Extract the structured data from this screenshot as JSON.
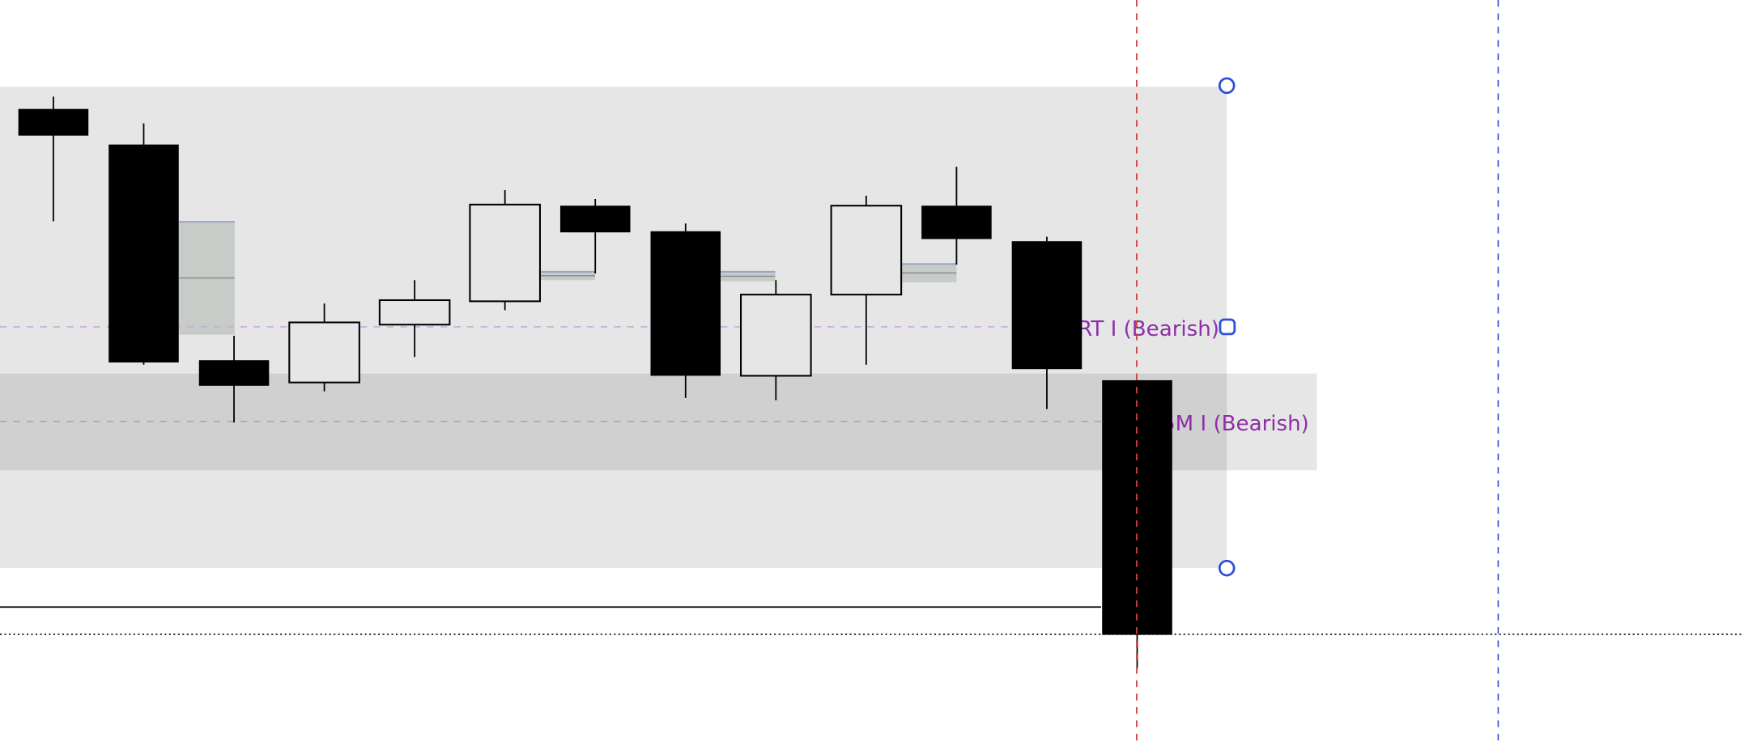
{
  "chart_data": {
    "type": "candlestick",
    "grid": false,
    "candles": [
      {
        "open": 573,
        "close": 549,
        "high": 584,
        "low": 472
      },
      {
        "open": 541,
        "close": 345,
        "high": 560,
        "low": 343
      },
      {
        "open": 347,
        "close": 324,
        "high": 369,
        "low": 291
      },
      {
        "open": 327,
        "close": 381,
        "high": 398,
        "low": 319
      },
      {
        "open": 379,
        "close": 401,
        "high": 419,
        "low": 350
      },
      {
        "open": 400,
        "close": 487,
        "high": 500,
        "low": 392
      },
      {
        "open": 486,
        "close": 462,
        "high": 492,
        "low": 425
      },
      {
        "open": 463,
        "close": 333,
        "high": 470,
        "low": 313
      },
      {
        "open": 333,
        "close": 406,
        "high": 419,
        "low": 311
      },
      {
        "open": 406,
        "close": 486,
        "high": 495,
        "low": 343
      },
      {
        "open": 486,
        "close": 456,
        "high": 521,
        "low": 433
      },
      {
        "open": 454,
        "close": 339,
        "high": 458,
        "low": 303
      },
      {
        "open": 329,
        "close": 100,
        "high": 329,
        "low": 70
      }
    ],
    "zones": [
      {
        "label": "4H IRT I (Bearish)",
        "level": 377,
        "color": "#8e2fa8"
      },
      {
        "label": "15M I (Bearish)",
        "level": 292,
        "color": "#8e2fa8"
      }
    ],
    "colors": {
      "bearish": "#000000",
      "bullish": "#e6e6e6",
      "zone_fill": "#e6e6e6",
      "band_fill": "#d0d0d0",
      "gap_fill": "#c8ccc8",
      "cursor_line": "#d04040",
      "time_line": "#3355dd",
      "handle": "#2c4fdc"
    }
  }
}
